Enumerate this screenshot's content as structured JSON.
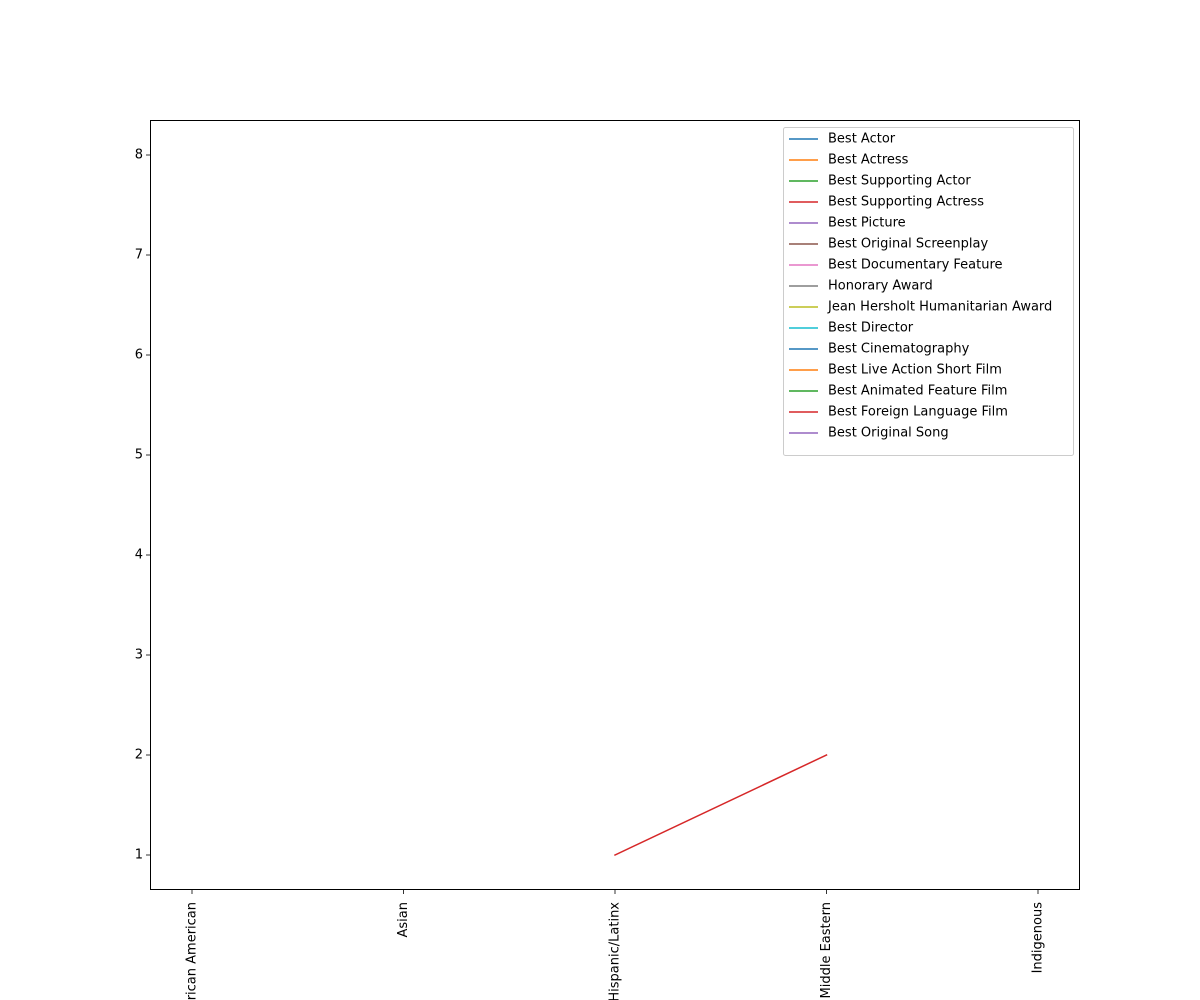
{
  "chart_data": {
    "type": "line",
    "title": "",
    "xlabel": "",
    "ylabel": "",
    "categories": [
      "African American",
      "Asian",
      "Hispanic/Latinx",
      "Middle Eastern",
      "Indigenous"
    ],
    "ylim": [
      0.65,
      8.35
    ],
    "yticks": [
      1,
      2,
      3,
      4,
      5,
      6,
      7,
      8
    ],
    "grid": false,
    "legend_position": "top-right",
    "series": [
      {
        "name": "Best Actor",
        "color": "#1f77b4",
        "values": [
          null,
          null,
          null,
          null,
          null
        ]
      },
      {
        "name": "Best Actress",
        "color": "#ff7f0e",
        "values": [
          null,
          null,
          null,
          null,
          null
        ]
      },
      {
        "name": "Best Supporting Actor",
        "color": "#2ca02c",
        "values": [
          null,
          null,
          null,
          null,
          null
        ]
      },
      {
        "name": "Best Supporting Actress",
        "color": "#d62728",
        "values": [
          null,
          null,
          1,
          2,
          null
        ]
      },
      {
        "name": "Best Picture",
        "color": "#9467bd",
        "values": [
          null,
          null,
          null,
          null,
          null
        ]
      },
      {
        "name": "Best Original Screenplay",
        "color": "#8c564b",
        "values": [
          null,
          null,
          null,
          null,
          null
        ]
      },
      {
        "name": "Best Documentary Feature",
        "color": "#e377c2",
        "values": [
          null,
          null,
          null,
          null,
          null
        ]
      },
      {
        "name": "Honorary Award",
        "color": "#7f7f7f",
        "values": [
          null,
          null,
          null,
          null,
          null
        ]
      },
      {
        "name": "Jean Hersholt Humanitarian Award",
        "color": "#bcbd22",
        "values": [
          null,
          null,
          null,
          null,
          null
        ]
      },
      {
        "name": "Best Director",
        "color": "#17becf",
        "values": [
          null,
          null,
          null,
          null,
          null
        ]
      },
      {
        "name": "Best Cinematography",
        "color": "#1f77b4",
        "values": [
          null,
          null,
          null,
          null,
          null
        ]
      },
      {
        "name": "Best Live Action Short Film",
        "color": "#ff7f0e",
        "values": [
          null,
          null,
          null,
          null,
          null
        ]
      },
      {
        "name": "Best Animated Feature Film",
        "color": "#2ca02c",
        "values": [
          null,
          null,
          null,
          null,
          null
        ]
      },
      {
        "name": "Best Foreign Language Film",
        "color": "#d62728",
        "values": [
          null,
          null,
          null,
          null,
          null
        ]
      },
      {
        "name": "Best Original Song",
        "color": "#9467bd",
        "values": [
          null,
          null,
          null,
          null,
          null
        ]
      }
    ]
  }
}
